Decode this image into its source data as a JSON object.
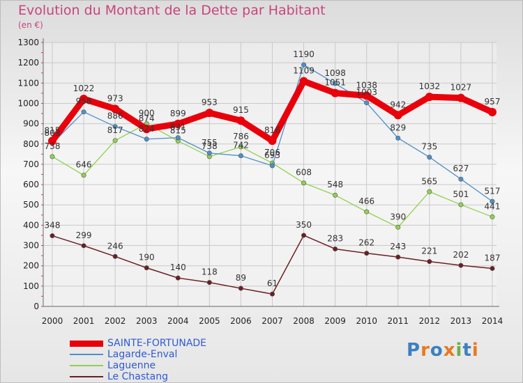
{
  "chart_data": {
    "type": "line",
    "title": "Evolution du Montant de la Dette par Habitant",
    "subtitle": "(en €)",
    "x": [
      2000,
      2001,
      2002,
      2003,
      2004,
      2005,
      2006,
      2007,
      2008,
      2009,
      2010,
      2011,
      2012,
      2013,
      2014
    ],
    "ylim": [
      0,
      1300
    ],
    "yticks": [
      0,
      100,
      200,
      300,
      400,
      500,
      600,
      700,
      800,
      900,
      1000,
      1100,
      1200,
      1300
    ],
    "grid": true,
    "legend_position": "bottom-left",
    "series": [
      {
        "name": "SAINTE-FORTUNADE",
        "color": "#e8000b",
        "values": [
          815,
          1022,
          973,
          874,
          899,
          953,
          915,
          816,
          1109,
          1051,
          1038,
          942,
          1032,
          1027,
          957
        ]
      },
      {
        "name": "Lagarde-Enval",
        "color": "#4d8fcb",
        "values": [
          803,
          958,
          886,
          824,
          831,
          755,
          742,
          693,
          1190,
          1098,
          1003,
          829,
          735,
          627,
          517
        ]
      },
      {
        "name": "Laguenne",
        "color": "#92d050",
        "values": [
          738,
          646,
          817,
          900,
          815,
          738,
          786,
          706,
          608,
          548,
          466,
          390,
          565,
          501,
          441
        ]
      },
      {
        "name": "Le Chastang",
        "color": "#6b1e24",
        "values": [
          348,
          299,
          246,
          190,
          140,
          118,
          89,
          61,
          350,
          283,
          262,
          243,
          221,
          202,
          187
        ]
      }
    ]
  },
  "logo": {
    "letters": [
      "P",
      "r",
      "o",
      "x",
      "i",
      "t",
      "i"
    ],
    "colors": [
      "#3d7fc2",
      "#e87a1e",
      "#3d7fc2",
      "#e87a1e",
      "#6ab04c",
      "#3d7fc2",
      "#e87a1e"
    ]
  }
}
